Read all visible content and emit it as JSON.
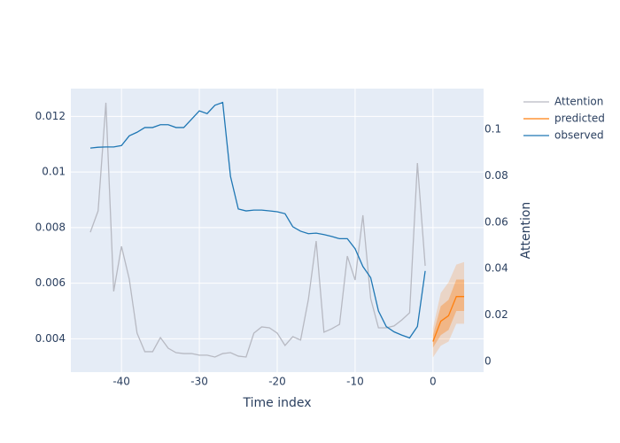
{
  "chart_data": {
    "type": "line",
    "x_label": "Time index",
    "y2_label": "Attention",
    "xlim": [
      -46.5,
      6.5
    ],
    "xticks": [
      -40,
      -30,
      -20,
      -10,
      0
    ],
    "ylim": [
      0.0028,
      0.013
    ],
    "yticks": [
      0.004,
      0.006,
      0.008,
      0.01,
      0.012
    ],
    "y2lim": [
      -0.0046,
      0.1176
    ],
    "y2ticks": [
      0,
      0.02,
      0.04,
      0.06,
      0.08,
      0.1
    ],
    "grid": true,
    "legend": "outside-top-right",
    "series": [
      {
        "name": "Attention",
        "color": "#b7b9c2",
        "axis": "y2",
        "x": [
          -44,
          -43,
          -42,
          -41,
          -40,
          -39,
          -38,
          -37,
          -36,
          -35,
          -34,
          -33,
          -32,
          -31,
          -30,
          -29,
          -28,
          -27,
          -26,
          -25,
          -24,
          -23,
          -22,
          -21,
          -20,
          -19,
          -18,
          -17,
          -16,
          -15,
          -14,
          -13,
          -12,
          -11,
          -10,
          -9,
          -8,
          -7,
          -6,
          -5,
          -4,
          -3,
          -2,
          -1
        ],
        "values": [
          0.0557,
          0.0649,
          0.1115,
          0.0302,
          0.0496,
          0.0355,
          0.0122,
          0.0042,
          0.0042,
          0.0103,
          0.0057,
          0.0038,
          0.0034,
          0.0034,
          0.0027,
          0.0027,
          0.0019,
          0.0034,
          0.0038,
          0.0023,
          0.0019,
          0.0122,
          0.0149,
          0.0145,
          0.0122,
          0.0069,
          0.0107,
          0.0092,
          0.0267,
          0.0519,
          0.0126,
          0.0141,
          0.016,
          0.0454,
          0.0351,
          0.063,
          0.0271,
          0.0145,
          0.0145,
          0.0153,
          0.0179,
          0.021,
          0.0855,
          0.0412
        ]
      },
      {
        "name": "predicted",
        "color": "#ff7f0e",
        "x": [
          0,
          1,
          2,
          3,
          4
        ],
        "values": [
          0.0039,
          0.00463,
          0.00483,
          0.00552,
          0.00552
        ],
        "bands": [
          {
            "lower": [
              0.00333,
              0.00375,
              0.0039,
              0.00454,
              0.00454
            ],
            "upper": [
              0.00438,
              0.00565,
              0.00603,
              0.00667,
              0.00676
            ],
            "color": "rgba(255,127,14,0.2)"
          },
          {
            "lower": [
              0.00368,
              0.00413,
              0.00432,
              0.005,
              0.005
            ],
            "upper": [
              0.00413,
              0.00517,
              0.0054,
              0.00613,
              0.00613
            ],
            "color": "rgba(255,127,14,0.35)"
          }
        ]
      },
      {
        "name": "observed",
        "color": "#1f77b4",
        "x": [
          -44,
          -43,
          -42,
          -41,
          -40,
          -39,
          -38,
          -37,
          -36,
          -35,
          -34,
          -33,
          -32,
          -31,
          -30,
          -29,
          -28,
          -27,
          -26,
          -25,
          -24,
          -23,
          -22,
          -21,
          -20,
          -19,
          -18,
          -17,
          -16,
          -15,
          -14,
          -13,
          -12,
          -11,
          -10,
          -9,
          -8,
          -7,
          -6,
          -5,
          -4,
          -3,
          -2,
          -1
        ],
        "values": [
          0.01086,
          0.01089,
          0.0109,
          0.0109,
          0.01095,
          0.0113,
          0.01143,
          0.0116,
          0.0116,
          0.0117,
          0.0117,
          0.0116,
          0.0116,
          0.0119,
          0.0122,
          0.0121,
          0.0124,
          0.0125,
          0.00984,
          0.00867,
          0.0086,
          0.00863,
          0.00863,
          0.0086,
          0.00857,
          0.0085,
          0.00803,
          0.00787,
          0.00778,
          0.0078,
          0.00775,
          0.00768,
          0.0076,
          0.0076,
          0.00724,
          0.0066,
          0.0062,
          0.005,
          0.00444,
          0.00425,
          0.00413,
          0.00403,
          0.00444,
          0.00644
        ]
      }
    ]
  }
}
